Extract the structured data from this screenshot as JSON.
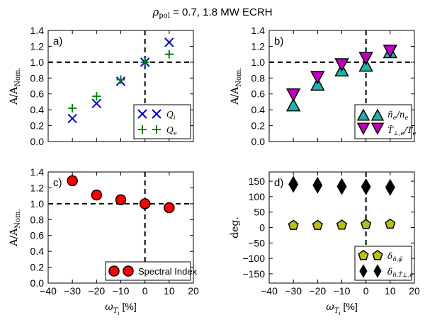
{
  "figure_title": "ρ_pol = 0.7,   1.8 MW ECRH",
  "figure_title_parts": {
    "rho": "ρ",
    "pol": "pol",
    "rest": " = 0.7,   1.8 MW ECRH"
  },
  "colors": {
    "blue": "#0000cc",
    "green": "#008000",
    "cyan": "#20b2aa",
    "magenta": "#c000c0",
    "red": "#ff0000",
    "olive": "#bdbd1a",
    "black": "#000000"
  },
  "chart_data": [
    {
      "type": "scatter",
      "panel_label": "a)",
      "xlim": [
        -40,
        20
      ],
      "ylim": [
        0.0,
        1.4
      ],
      "xticks": [
        "−40",
        "−30",
        "−20",
        "−10",
        "0",
        "10",
        "20"
      ],
      "yticks": [
        "0.0",
        "0.2",
        "0.4",
        "0.6",
        "0.8",
        "1.0",
        "1.2",
        "1.4"
      ],
      "ylabel": "A/A_Nom.",
      "xlabel": "",
      "reference_lines": {
        "x": 0,
        "y": 1.0,
        "style": "dashed"
      },
      "legend": {
        "placement": "lower-right"
      },
      "series": [
        {
          "name": "Q_i",
          "legend_label": "Qi",
          "marker": "x",
          "color": "blue",
          "x": [
            -30,
            -20,
            -10,
            0,
            10
          ],
          "y": [
            0.29,
            0.48,
            0.76,
            1.0,
            1.25
          ]
        },
        {
          "name": "Q_e",
          "legend_label": "Qe",
          "marker": "plus",
          "color": "green",
          "x": [
            -30,
            -20,
            -10,
            0,
            10
          ],
          "y": [
            0.42,
            0.57,
            0.78,
            1.0,
            1.1
          ]
        }
      ]
    },
    {
      "type": "scatter",
      "panel_label": "b)",
      "xlim": [
        -40,
        20
      ],
      "ylim": [
        0.0,
        1.4
      ],
      "xticks": [
        "−40",
        "−30",
        "−20",
        "−10",
        "0",
        "10",
        "20"
      ],
      "yticks": [
        "0.0",
        "0.2",
        "0.4",
        "0.6",
        "0.8",
        "1.0",
        "1.2",
        "1.4"
      ],
      "ylabel": "A/A_Nom.",
      "xlabel": "",
      "reference_lines": {
        "x": 0,
        "y": 1.0,
        "style": "dashed"
      },
      "legend": {
        "placement": "lower-right"
      },
      "series": [
        {
          "name": "ñ_e/n_e",
          "legend_label": "ñe/ne",
          "marker": "triangle-up",
          "color": "cyan",
          "x": [
            -30,
            -20,
            -10,
            0,
            10
          ],
          "y": [
            0.5,
            0.76,
            0.94,
            1.0,
            1.17
          ]
        },
        {
          "name": "T̃_⊥,e/T_e",
          "legend_label": "T̃⊥,e/Te",
          "marker": "triangle-down",
          "color": "magenta",
          "x": [
            -30,
            -20,
            -10,
            0,
            10
          ],
          "y": [
            0.55,
            0.77,
            0.93,
            1.01,
            1.1
          ]
        }
      ]
    },
    {
      "type": "scatter",
      "panel_label": "c)",
      "xlim": [
        -40,
        20
      ],
      "ylim": [
        0.0,
        1.4
      ],
      "xticks": [
        "−40",
        "−30",
        "−20",
        "−10",
        "0",
        "10",
        "20"
      ],
      "yticks": [
        "0.0",
        "0.2",
        "0.4",
        "0.6",
        "0.8",
        "1.0",
        "1.2",
        "1.4"
      ],
      "ylabel": "A/A_Nom.",
      "xlabel": "ω_T_i [%]",
      "reference_lines": {
        "x": 0,
        "y": 1.0,
        "style": "dashed"
      },
      "legend": {
        "placement": "lower-right"
      },
      "series": [
        {
          "name": "Spectral Index",
          "legend_label": "Spectral Index",
          "marker": "circle",
          "color": "red",
          "x": [
            -30,
            -20,
            -10,
            0,
            10
          ],
          "y": [
            1.29,
            1.11,
            1.05,
            1.0,
            0.95
          ]
        }
      ]
    },
    {
      "type": "scatter",
      "panel_label": "d)",
      "xlim": [
        -40,
        20
      ],
      "ylim": [
        -180,
        180
      ],
      "xticks": [
        "−40",
        "−30",
        "−20",
        "−10",
        "0",
        "10",
        "20"
      ],
      "yticks": [
        "−150",
        "−100",
        "−50",
        "0",
        "50",
        "100",
        "150"
      ],
      "ylabel": "deg.",
      "xlabel": "ω_T_i [%]",
      "reference_lines": {
        "x": 0,
        "y": null,
        "style": "dashed"
      },
      "legend": {
        "placement": "lower-right"
      },
      "series": [
        {
          "name": "δ_ñ,φ̃",
          "legend_label": "δñ,φ̃",
          "marker": "pentagon",
          "color": "olive",
          "x": [
            -30,
            -20,
            -10,
            0,
            10
          ],
          "y": [
            7,
            7,
            8,
            10,
            11
          ]
        },
        {
          "name": "δ_ñ,T̃⊥,e",
          "legend_label": "δñ,T̃⊥,e",
          "marker": "diamond",
          "color": "black",
          "x": [
            -30,
            -20,
            -10,
            0,
            10
          ],
          "y": [
            140,
            137,
            133,
            132,
            130
          ]
        }
      ]
    }
  ]
}
